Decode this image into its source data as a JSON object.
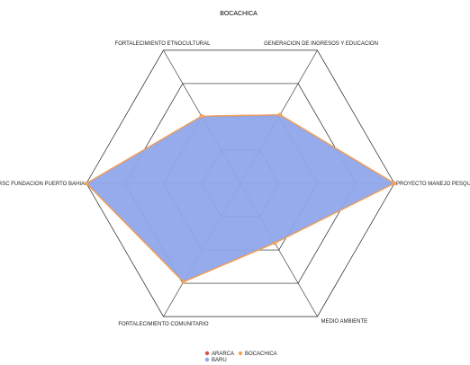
{
  "chart_data": {
    "type": "radar",
    "title": "BOCACHICA",
    "axes": [
      "GENERACION DE INGRESOS Y EDUCACION",
      "PROYECTO MANEJO PESQUERO",
      "MEDIO AMBIENTE",
      "FORTALECIMIENTO COMUNITARIO",
      "RSC FUNDACION PUERTO BAHIA",
      "FORTALECIMIENTO ETNOCULTURAL"
    ],
    "r_range": [
      0,
      4
    ],
    "rings": 4,
    "grid": true,
    "legend_position": "bottom",
    "series": [
      {
        "name": "ARARCA",
        "color": "#d9534f",
        "values": [
          2.06,
          4,
          1.79,
          2.96,
          4,
          2.02
        ],
        "fill": false
      },
      {
        "name": "BOCACHICA",
        "color": "#f2a65a",
        "values": [
          2.06,
          4,
          1.79,
          2.96,
          4,
          2.02
        ],
        "fill": false
      },
      {
        "name": "BARU",
        "color": "#8fa6ea",
        "values": [
          2.06,
          4,
          1.79,
          2.96,
          4,
          2.02
        ],
        "fill": true
      }
    ]
  }
}
